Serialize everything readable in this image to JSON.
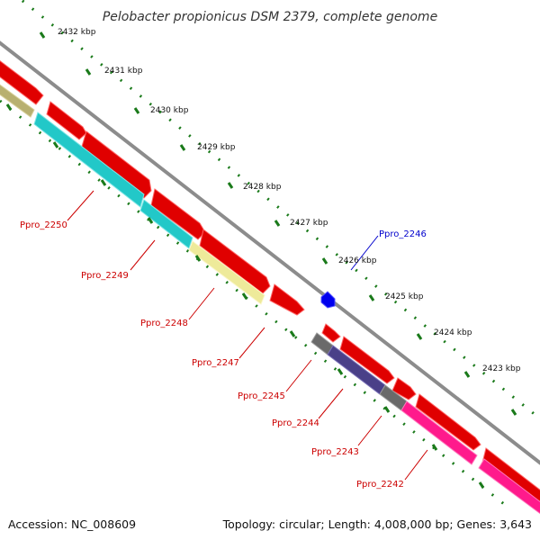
{
  "title": "Pelobacter propionicus DSM 2379, complete genome",
  "footer": {
    "accession": "Accession: NC_008609",
    "summary": "Topology: circular; Length: 4,008,000 bp; Genes: 3,643"
  },
  "colors": {
    "backbone": "#8c8c8c",
    "forward_gene": "#ff0000",
    "ruler": "#1a7a1a",
    "label_red": "#cc0000",
    "label_blue": "#0000cc"
  },
  "ruler_labels": [
    "2432 kbp",
    "2431 kbp",
    "2430 kbp",
    "2429 kbp",
    "2428 kbp",
    "2427 kbp",
    "2426 kbp",
    "2425 kbp",
    "2424 kbp",
    "2423 kbp"
  ],
  "gene_labels": [
    {
      "text": "Ppro_2250",
      "color": "#cc0000"
    },
    {
      "text": "Ppro_2249",
      "color": "#cc0000"
    },
    {
      "text": "Ppro_2248",
      "color": "#cc0000"
    },
    {
      "text": "Ppro_2247",
      "color": "#cc0000"
    },
    {
      "text": "Ppro_2246",
      "color": "#0000cc"
    },
    {
      "text": "Ppro_2245",
      "color": "#cc0000"
    },
    {
      "text": "Ppro_2244",
      "color": "#cc0000"
    },
    {
      "text": "Ppro_2243",
      "color": "#cc0000"
    },
    {
      "text": "Ppro_2242",
      "color": "#cc0000"
    }
  ]
}
